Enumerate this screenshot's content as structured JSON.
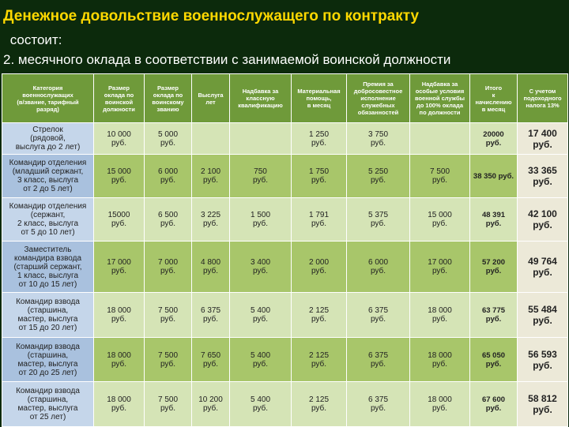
{
  "header": {
    "title": "Денежное довольствие военнослужащего по контракту",
    "subtitle": " состоит:",
    "point": "2. месячного оклада в соответствии с занимаемой воинской должности"
  },
  "table": {
    "columns": [
      "Категория\nвоеннослужащих\n(в/звание, тарифный\nразряд)",
      "Размер\nоклада по\nвоинской\nдолжности",
      "Размер\nоклада по\nвоинскому\nзванию",
      "Выслуга\nлет",
      "Надбавка за\nклассную\nквалификацию",
      "Материальная\nпомощь,\nв месяц",
      "Премия за\nдобросовестное\nисполнение\nслужебных\nобязанностей",
      "Надбавка за\nособые условия\nвоенной службы\nдо 100% оклада\nпо должности",
      "Итого\nк\nначислению\nв месяц",
      "С учетом\nподоходного\nналога 13%"
    ],
    "rows": [
      [
        "Стрелок\n(рядовой,\nвыслуга до 2 лет)",
        "10 000\nруб.",
        "5 000\nруб.",
        null,
        null,
        "1 250\nруб.",
        "3 750\nруб.",
        null,
        "20000\nруб.",
        "17 400\nруб."
      ],
      [
        "Командир отделения\n(младший сержант,\n3 класс, выслуга\nот 2 до 5 лет)",
        "15 000\nруб.",
        "6 000\nруб.",
        "2 100\nруб.",
        "750\nруб.",
        "1 750\nруб.",
        "5 250\nруб.",
        "7 500\nруб.",
        "38 350 руб.",
        "33 365\nруб."
      ],
      [
        "Командир отделения\n(сержант,\n2 класс, выслуга\nот 5 до 10 лет)",
        "15000\nруб.",
        "6 500\nруб.",
        "3 225\nруб.",
        "1 500\nруб.",
        "1 791\nруб.",
        "5 375\nруб.",
        "15 000\nруб.",
        "48 391\nруб.",
        "42 100\nруб."
      ],
      [
        "Заместитель\nкомандира взвода\n(старший сержант,\n1 класс, выслуга\nот 10 до 15 лет)",
        "17 000\nруб.",
        "7 000\nруб.",
        "4 800\nруб.",
        "3 400\nруб.",
        "2 000\nруб.",
        "6 000\nруб.",
        "17 000\nруб.",
        "57 200\nруб.",
        "49 764\nруб."
      ],
      [
        "Командир взвода\n(старшина,\nмастер, выслуга\nот 15 до 20 лет)",
        "18 000\nруб.",
        "7 500\nруб.",
        "6 375\nруб.",
        "5 400\nруб.",
        "2 125\nруб.",
        "6 375\nруб.",
        "18 000\nруб.",
        "63 775\nруб.",
        "55 484\nруб."
      ],
      [
        "Командир взвода\n(старшина,\nмастер, выслуга\nот 20 до 25 лет)",
        "18 000\nруб.",
        "7 500\nруб.",
        "7 650\nруб.",
        "5 400\nруб.",
        "2 125\nруб.",
        "6 375\nруб.",
        "18 000\nруб.",
        "65 050\nруб.",
        "56 593\nруб."
      ],
      [
        "Командир взвода\n(старшина,\nмастер, выслуга\nот 25 лет)",
        "18 000\nруб.",
        "7 500\nруб.",
        "10 200\nруб.",
        "5 400\nруб.",
        "2 125\nруб.",
        "6 375\nруб.",
        "18 000\nруб.",
        "67 600\nруб.",
        "58 812\nруб."
      ]
    ]
  }
}
